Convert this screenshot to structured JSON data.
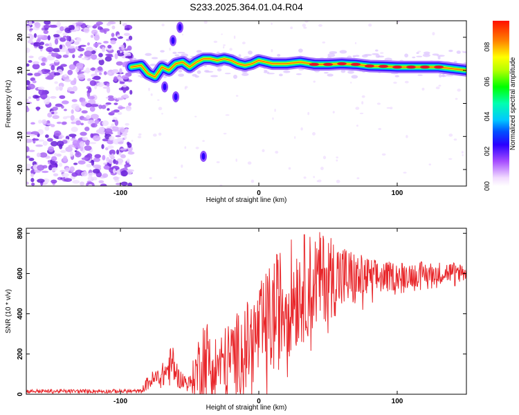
{
  "title": "S233.2025.364.01.04.R04",
  "chart_data": [
    {
      "type": "heatmap",
      "xlabel": "Height of straight line (km)",
      "ylabel": "Frequency (Hz)",
      "xlim": [
        -168,
        150
      ],
      "ylim": [
        -25,
        25
      ],
      "xticks": [
        -100,
        0,
        100
      ],
      "yticks": [
        -20,
        -10,
        0,
        10,
        20
      ],
      "colorbar": {
        "label": "Normalized spectral amplitude",
        "range": [
          0.0,
          0.95
        ],
        "ticks": [
          "0.0",
          "0.2",
          "0.4",
          "0.6",
          "0.8"
        ]
      },
      "noise_region_x": [
        -168,
        -92
      ],
      "ridge": [
        {
          "x": -92,
          "y": 11.0
        },
        {
          "x": -85,
          "y": 11.5
        },
        {
          "x": -80,
          "y": 9.0
        },
        {
          "x": -75,
          "y": 8.0
        },
        {
          "x": -70,
          "y": 11.0
        },
        {
          "x": -65,
          "y": 10.0
        },
        {
          "x": -60,
          "y": 12.0
        },
        {
          "x": -55,
          "y": 12.5
        },
        {
          "x": -50,
          "y": 11.0
        },
        {
          "x": -45,
          "y": 12.5
        },
        {
          "x": -40,
          "y": 13.5
        },
        {
          "x": -35,
          "y": 13.5
        },
        {
          "x": -30,
          "y": 13.0
        },
        {
          "x": -25,
          "y": 13.5
        },
        {
          "x": -20,
          "y": 13.0
        },
        {
          "x": -15,
          "y": 12.0
        },
        {
          "x": -10,
          "y": 11.5
        },
        {
          "x": -5,
          "y": 12.0
        },
        {
          "x": 0,
          "y": 13.0
        },
        {
          "x": 5,
          "y": 12.5
        },
        {
          "x": 10,
          "y": 12.0
        },
        {
          "x": 20,
          "y": 12.0
        },
        {
          "x": 30,
          "y": 12.5
        },
        {
          "x": 40,
          "y": 11.8
        },
        {
          "x": 50,
          "y": 11.8
        },
        {
          "x": 60,
          "y": 12.0
        },
        {
          "x": 70,
          "y": 11.8
        },
        {
          "x": 80,
          "y": 11.3
        },
        {
          "x": 90,
          "y": 11.2
        },
        {
          "x": 100,
          "y": 11.0
        },
        {
          "x": 110,
          "y": 11.0
        },
        {
          "x": 120,
          "y": 11.0
        },
        {
          "x": 130,
          "y": 11.0
        },
        {
          "x": 140,
          "y": 10.5
        },
        {
          "x": 150,
          "y": 10.0
        }
      ],
      "branches": [
        {
          "x": -57,
          "y": 23
        },
        {
          "x": -62,
          "y": 19
        },
        {
          "x": -68,
          "y": 5
        },
        {
          "x": -60,
          "y": 2
        },
        {
          "x": -40,
          "y": -16
        }
      ]
    },
    {
      "type": "line",
      "xlabel": "Height of straight line (km)",
      "ylabel": "SNR (10 * v/v)",
      "xlim": [
        -168,
        150
      ],
      "ylim": [
        0,
        825
      ],
      "xticks": [
        -100,
        0,
        100
      ],
      "yticks": [
        0,
        200,
        400,
        600,
        800
      ],
      "series": [
        {
          "name": "SNR",
          "color": "#e8262a",
          "envelope": [
            {
              "x": -168,
              "base": 15,
              "amp": 10
            },
            {
              "x": -85,
              "base": 15,
              "amp": 10
            },
            {
              "x": -80,
              "base": 60,
              "amp": 40
            },
            {
              "x": -70,
              "base": 90,
              "amp": 60
            },
            {
              "x": -62,
              "base": 150,
              "amp": 110
            },
            {
              "x": -58,
              "base": 80,
              "amp": 50
            },
            {
              "x": -50,
              "base": 50,
              "amp": 40
            },
            {
              "x": -40,
              "base": 180,
              "amp": 230
            },
            {
              "x": -30,
              "base": 140,
              "amp": 150
            },
            {
              "x": -20,
              "base": 180,
              "amp": 200
            },
            {
              "x": -10,
              "base": 230,
              "amp": 220
            },
            {
              "x": 0,
              "base": 300,
              "amp": 240
            },
            {
              "x": 10,
              "base": 380,
              "amp": 300
            },
            {
              "x": 20,
              "base": 470,
              "amp": 300
            },
            {
              "x": 30,
              "base": 520,
              "amp": 280
            },
            {
              "x": 40,
              "base": 560,
              "amp": 250
            },
            {
              "x": 50,
              "base": 590,
              "amp": 220
            },
            {
              "x": 60,
              "base": 580,
              "amp": 180
            },
            {
              "x": 70,
              "base": 570,
              "amp": 140
            },
            {
              "x": 80,
              "base": 580,
              "amp": 100
            },
            {
              "x": 90,
              "base": 580,
              "amp": 80
            },
            {
              "x": 100,
              "base": 590,
              "amp": 70
            },
            {
              "x": 120,
              "base": 600,
              "amp": 60
            },
            {
              "x": 150,
              "base": 610,
              "amp": 50
            }
          ]
        }
      ]
    }
  ]
}
